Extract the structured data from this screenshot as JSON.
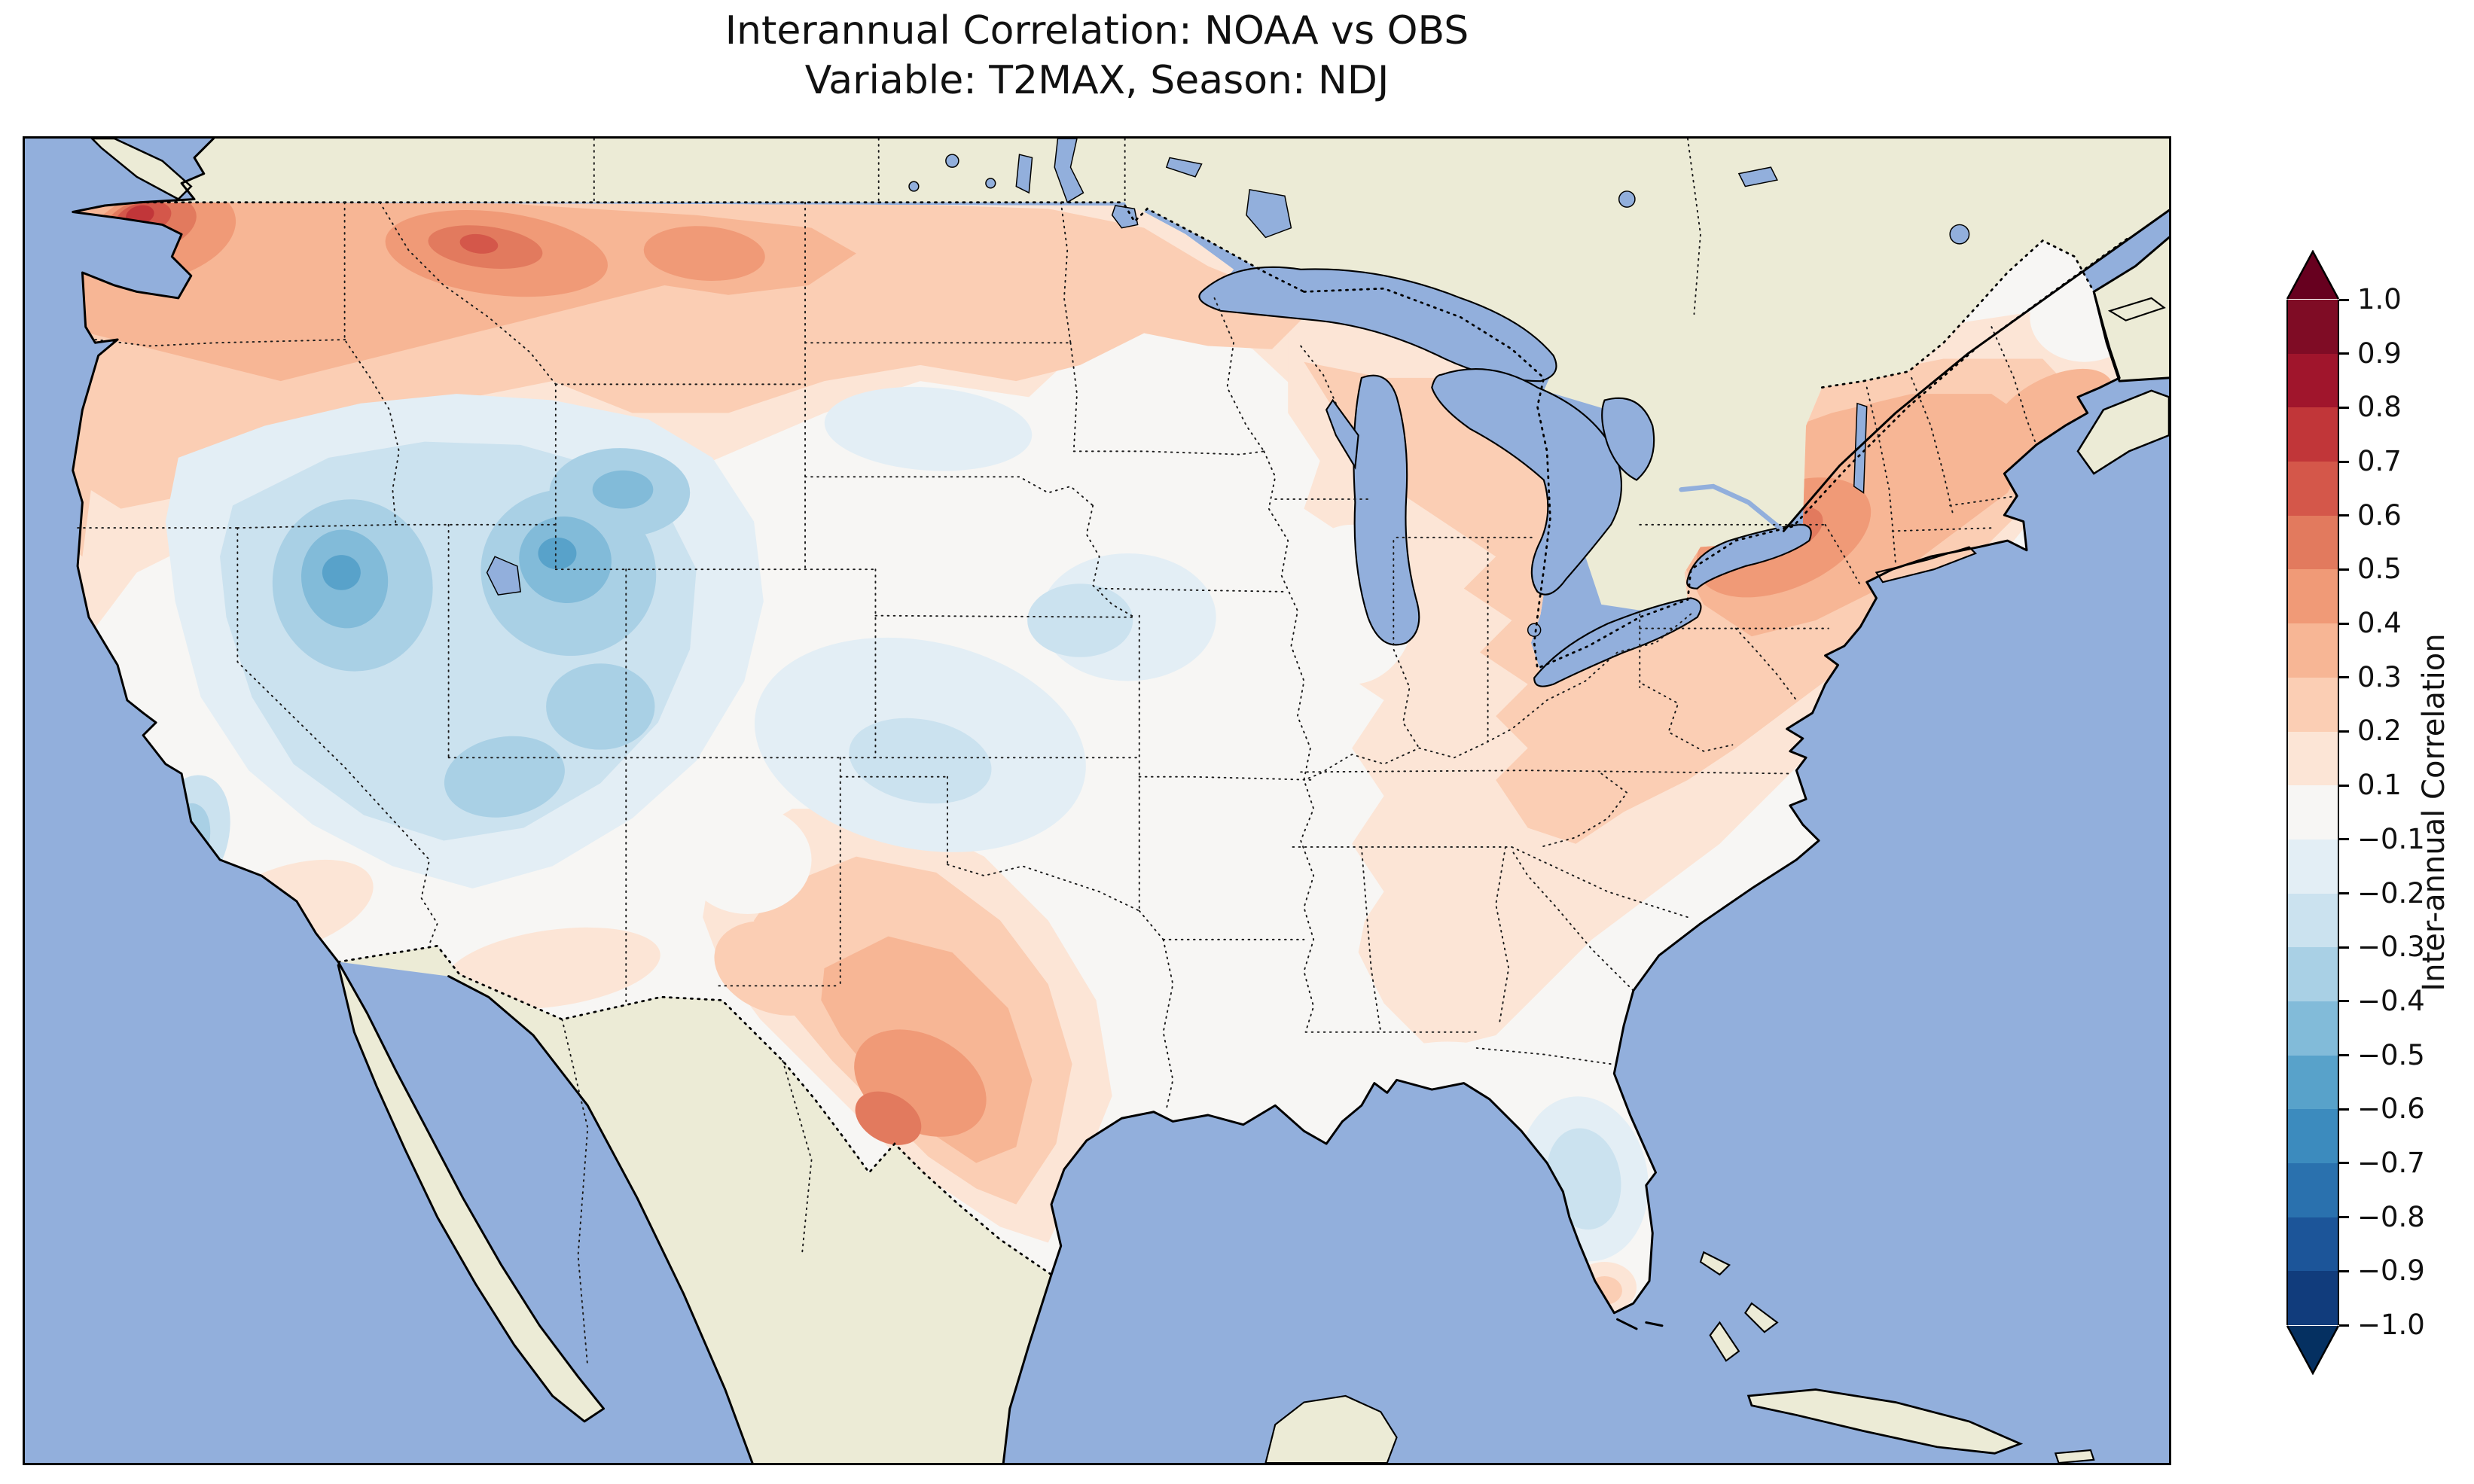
{
  "title": {
    "line1": "Interannual Correlation: NOAA vs OBS",
    "line2": "Variable: T2MAX, Season: NDJ"
  },
  "colorbar": {
    "label": "Inter-annual Correlation",
    "tick_labels": [
      "1.0",
      "0.9",
      "0.8",
      "0.7",
      "0.6",
      "0.5",
      "0.4",
      "0.3",
      "0.2",
      "0.1",
      "−0.1",
      "−0.2",
      "−0.3",
      "−0.4",
      "−0.5",
      "−0.6",
      "−0.7",
      "−0.8",
      "−0.9",
      "−1.0"
    ],
    "segment_colors": [
      "#7f0c25",
      "#a0152c",
      "#c13639",
      "#d4574a",
      "#e27a5e",
      "#f09a77",
      "#f7b695",
      "#fbceb4",
      "#fce5d6",
      "#f7f6f4",
      "#e3eef5",
      "#cbe2ef",
      "#a9d0e5",
      "#82bbd9",
      "#58a2ca",
      "#3c8bbe",
      "#2a71ae",
      "#1c5599",
      "#113c7c"
    ],
    "extend_over_color": "#67001f",
    "extend_under_color": "#053061"
  },
  "map": {
    "ocean_color": "#92afdc",
    "land_color": "#ecebd6",
    "coastline_color": "#000000"
  },
  "chart_data": {
    "type": "heatmap",
    "title": "Interannual Correlation: NOAA vs OBS",
    "subtitle": "Variable: T2MAX, Season: NDJ",
    "variable": "T2MAX",
    "season": "NDJ",
    "datasets_compared": [
      "NOAA",
      "OBS"
    ],
    "region": "Contiguous United States (filled-contour map, political borders dotted)",
    "colormap": "RdBu_r (red = positive correlation, blue = negative)",
    "value_range": [
      -1.0,
      1.0
    ],
    "contour_levels": [
      -1.0,
      -0.9,
      -0.8,
      -0.7,
      -0.6,
      -0.5,
      -0.4,
      -0.3,
      -0.2,
      -0.1,
      0.1,
      0.2,
      0.3,
      0.4,
      0.5,
      0.6,
      0.7,
      0.8,
      0.9,
      1.0
    ],
    "colorbar_label": "Inter-annual Correlation",
    "legend_position": "right vertical colorbar with pointed extend arrows at both ends",
    "regional_values": [
      {
        "region": "Western Washington / Puget Sound",
        "correlation": 0.7
      },
      {
        "region": "Oregon coast",
        "correlation": 0.4
      },
      {
        "region": "Northern Idaho / NW Montana",
        "correlation": 0.55
      },
      {
        "region": "Montana and northern High Plains",
        "correlation": 0.4
      },
      {
        "region": "North Dakota / northern Minnesota",
        "correlation": 0.3
      },
      {
        "region": "Great Lakes / Upper Midwest",
        "correlation": 0.3
      },
      {
        "region": "Northeast (New York, Pennsylvania, New England)",
        "correlation": 0.45
      },
      {
        "region": "Ohio Valley / Appalachians",
        "correlation": 0.3
      },
      {
        "region": "Southeast interior (Tennessee, Georgia, Carolinas)",
        "correlation": 0.2
      },
      {
        "region": "Gulf Coast / lower Mississippi Valley",
        "correlation": 0.05
      },
      {
        "region": "Central Plains (Kansas, Nebraska, Oklahoma)",
        "correlation": -0.1
      },
      {
        "region": "Great Basin (Nevada)",
        "correlation": -0.45
      },
      {
        "region": "Utah / western Colorado",
        "correlation": -0.45
      },
      {
        "region": "Wyoming",
        "correlation": -0.3
      },
      {
        "region": "Northern Arizona / New Mexico highlands",
        "correlation": -0.25
      },
      {
        "region": "Central California coast",
        "correlation": -0.55
      },
      {
        "region": "Southern California",
        "correlation": 0.15
      },
      {
        "region": "West Texas / Big Bend",
        "correlation": 0.55
      },
      {
        "region": "Central and South Texas",
        "correlation": 0.4
      },
      {
        "region": "Central Florida peninsula",
        "correlation": -0.25
      },
      {
        "region": "South Florida tip",
        "correlation": 0.4
      }
    ]
  }
}
